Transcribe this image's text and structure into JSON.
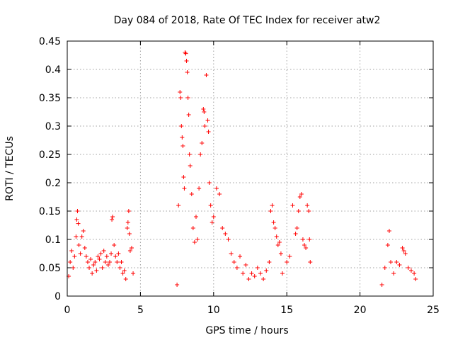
{
  "chart_data": {
    "type": "scatter",
    "title": "Day 084 of 2018, Rate Of TEC Index for receiver atw2",
    "xlabel": "GPS time / hours",
    "ylabel": "ROTI / TECUs",
    "xlim": [
      0,
      25
    ],
    "ylim": [
      0,
      0.45
    ],
    "xticks": [
      "0",
      "5",
      "10",
      "15",
      "20",
      "25"
    ],
    "yticks": [
      "0",
      "0.05",
      "0.1",
      "0.15",
      "0.2",
      "0.25",
      "0.3",
      "0.35",
      "0.4",
      "0.45"
    ],
    "grid": true,
    "marker": "plus",
    "color": "#ff0000",
    "series": [
      {
        "name": "ROTI",
        "points": [
          [
            0.1,
            0.035
          ],
          [
            0.2,
            0.06
          ],
          [
            0.3,
            0.08
          ],
          [
            0.4,
            0.05
          ],
          [
            0.5,
            0.07
          ],
          [
            0.6,
            0.105
          ],
          [
            0.65,
            0.135
          ],
          [
            0.7,
            0.15
          ],
          [
            0.75,
            0.128
          ],
          [
            0.8,
            0.09
          ],
          [
            0.9,
            0.075
          ],
          [
            1.0,
            0.105
          ],
          [
            1.1,
            0.115
          ],
          [
            1.2,
            0.085
          ],
          [
            1.3,
            0.07
          ],
          [
            1.4,
            0.06
          ],
          [
            1.5,
            0.05
          ],
          [
            1.6,
            0.065
          ],
          [
            1.7,
            0.04
          ],
          [
            1.8,
            0.055
          ],
          [
            1.9,
            0.06
          ],
          [
            2.0,
            0.045
          ],
          [
            2.1,
            0.07
          ],
          [
            2.2,
            0.065
          ],
          [
            2.3,
            0.075
          ],
          [
            2.4,
            0.05
          ],
          [
            2.5,
            0.08
          ],
          [
            2.6,
            0.06
          ],
          [
            2.7,
            0.07
          ],
          [
            2.8,
            0.055
          ],
          [
            2.9,
            0.06
          ],
          [
            3.0,
            0.075
          ],
          [
            3.05,
            0.135
          ],
          [
            3.1,
            0.14
          ],
          [
            3.2,
            0.09
          ],
          [
            3.3,
            0.07
          ],
          [
            3.4,
            0.06
          ],
          [
            3.5,
            0.075
          ],
          [
            3.6,
            0.05
          ],
          [
            3.7,
            0.06
          ],
          [
            3.8,
            0.04
          ],
          [
            3.9,
            0.045
          ],
          [
            4.0,
            0.03
          ],
          [
            4.1,
            0.12
          ],
          [
            4.15,
            0.13
          ],
          [
            4.2,
            0.15
          ],
          [
            4.25,
            0.11
          ],
          [
            4.3,
            0.08
          ],
          [
            4.4,
            0.085
          ],
          [
            4.5,
            0.04
          ],
          [
            7.5,
            0.02
          ],
          [
            7.6,
            0.16
          ],
          [
            7.7,
            0.36
          ],
          [
            7.75,
            0.35
          ],
          [
            7.8,
            0.3
          ],
          [
            7.85,
            0.28
          ],
          [
            7.9,
            0.265
          ],
          [
            7.95,
            0.21
          ],
          [
            8.0,
            0.19
          ],
          [
            8.05,
            0.43
          ],
          [
            8.1,
            0.428
          ],
          [
            8.15,
            0.415
          ],
          [
            8.2,
            0.395
          ],
          [
            8.25,
            0.35
          ],
          [
            8.3,
            0.32
          ],
          [
            8.35,
            0.25
          ],
          [
            8.4,
            0.23
          ],
          [
            8.5,
            0.18
          ],
          [
            8.6,
            0.12
          ],
          [
            8.7,
            0.095
          ],
          [
            8.8,
            0.14
          ],
          [
            8.9,
            0.1
          ],
          [
            9.0,
            0.19
          ],
          [
            9.1,
            0.25
          ],
          [
            9.2,
            0.27
          ],
          [
            9.3,
            0.33
          ],
          [
            9.35,
            0.325
          ],
          [
            9.4,
            0.3
          ],
          [
            9.5,
            0.39
          ],
          [
            9.6,
            0.31
          ],
          [
            9.65,
            0.29
          ],
          [
            9.7,
            0.2
          ],
          [
            9.8,
            0.16
          ],
          [
            9.9,
            0.13
          ],
          [
            10.0,
            0.14
          ],
          [
            10.2,
            0.19
          ],
          [
            10.4,
            0.18
          ],
          [
            10.6,
            0.12
          ],
          [
            10.8,
            0.11
          ],
          [
            11.0,
            0.1
          ],
          [
            11.2,
            0.075
          ],
          [
            11.4,
            0.06
          ],
          [
            11.6,
            0.05
          ],
          [
            11.8,
            0.07
          ],
          [
            12.0,
            0.04
          ],
          [
            12.2,
            0.055
          ],
          [
            12.4,
            0.03
          ],
          [
            12.6,
            0.04
          ],
          [
            12.8,
            0.035
          ],
          [
            13.0,
            0.05
          ],
          [
            13.2,
            0.04
          ],
          [
            13.4,
            0.03
          ],
          [
            13.6,
            0.045
          ],
          [
            13.8,
            0.06
          ],
          [
            13.9,
            0.15
          ],
          [
            14.0,
            0.16
          ],
          [
            14.1,
            0.13
          ],
          [
            14.2,
            0.12
          ],
          [
            14.3,
            0.105
          ],
          [
            14.4,
            0.09
          ],
          [
            14.5,
            0.095
          ],
          [
            14.6,
            0.075
          ],
          [
            14.7,
            0.04
          ],
          [
            15.0,
            0.06
          ],
          [
            15.2,
            0.07
          ],
          [
            15.4,
            0.16
          ],
          [
            15.6,
            0.11
          ],
          [
            15.7,
            0.12
          ],
          [
            15.8,
            0.15
          ],
          [
            15.9,
            0.175
          ],
          [
            16.0,
            0.18
          ],
          [
            16.1,
            0.1
          ],
          [
            16.2,
            0.09
          ],
          [
            16.3,
            0.085
          ],
          [
            16.4,
            0.16
          ],
          [
            16.5,
            0.15
          ],
          [
            16.55,
            0.1
          ],
          [
            16.6,
            0.06
          ],
          [
            21.5,
            0.02
          ],
          [
            21.7,
            0.05
          ],
          [
            21.9,
            0.09
          ],
          [
            22.0,
            0.115
          ],
          [
            22.1,
            0.06
          ],
          [
            22.3,
            0.04
          ],
          [
            22.5,
            0.06
          ],
          [
            22.7,
            0.055
          ],
          [
            22.9,
            0.085
          ],
          [
            23.0,
            0.08
          ],
          [
            23.1,
            0.075
          ],
          [
            23.3,
            0.05
          ],
          [
            23.5,
            0.045
          ],
          [
            23.7,
            0.04
          ],
          [
            23.8,
            0.03
          ]
        ]
      }
    ]
  }
}
